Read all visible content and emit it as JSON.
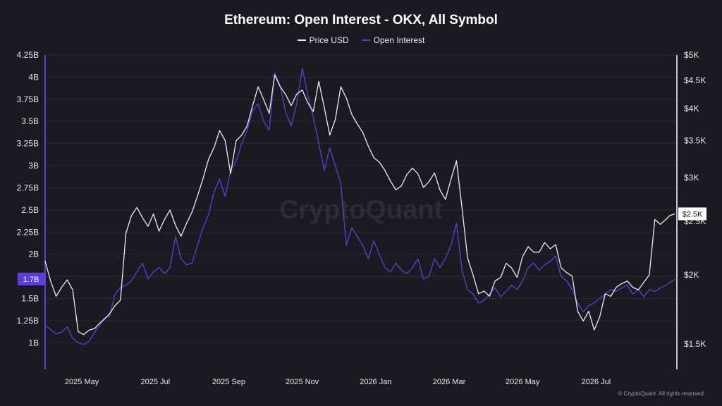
{
  "title": "Ethereum: Open Interest - OKX, All Symbol",
  "legend": {
    "price_label": "Price USD",
    "oi_label": "Open Interest"
  },
  "footer": "© CryptoQuant. All rights reserved",
  "watermark": "CryptoQuant",
  "colors": {
    "background": "#1b1a20",
    "price": "#ececf0",
    "open_interest": "#5a3fdc",
    "grid": "#2b2a32",
    "axis_text": "#e6e6ea",
    "left_axis_line": "#5a3fdc",
    "oi_tag_bg": "#5a3fdc",
    "price_tag_bg": "#ffffff"
  },
  "chart_data": {
    "type": "line",
    "title": "Ethereum: Open Interest - OKX, All Symbol",
    "x_tick_labels": [
      "2025 May",
      "2025 Jul",
      "2025 Sep",
      "2025 Nov",
      "2026 Jan",
      "2026 Mar",
      "2026 May",
      "2026 Jul"
    ],
    "x_ticks_month_index": [
      1,
      3,
      5,
      7,
      9,
      11,
      13,
      15
    ],
    "x_range_month_index": [
      0,
      17.2
    ],
    "left_axis": {
      "ylim": [
        0.7,
        4.25
      ],
      "ticks": [
        1,
        1.25,
        1.5,
        1.75,
        2,
        2.25,
        2.5,
        2.75,
        3,
        3.25,
        3.5,
        3.75,
        4,
        4.25
      ],
      "tick_labels": [
        "1B",
        "1.25B",
        "1.5B",
        "1.75B",
        "2B",
        "2.25B",
        "2.5B",
        "2.75B",
        "3B",
        "3.25B",
        "3.5B",
        "3.75B",
        "4B",
        "4.25B"
      ],
      "current_value_label": "1.7B"
    },
    "right_axis": {
      "scale": "log",
      "ylim": [
        1350,
        5000
      ],
      "ticks": [
        1500,
        2000,
        2500,
        3000,
        3500,
        4000,
        4500,
        5000
      ],
      "tick_labels": [
        "$1.5K",
        "$2K",
        "$2.5K",
        "$3K",
        "$3.5K",
        "$4K",
        "$4.5K",
        "$5K"
      ],
      "current_value_label": "$2.5K"
    },
    "series": [
      {
        "name": "Price USD",
        "axis": "right",
        "color": "#ececf0",
        "x": [
          0,
          0.15,
          0.3,
          0.45,
          0.6,
          0.75,
          0.9,
          1.05,
          1.2,
          1.35,
          1.5,
          1.6,
          1.75,
          1.9,
          2.05,
          2.2,
          2.35,
          2.5,
          2.65,
          2.8,
          2.95,
          3.1,
          3.25,
          3.4,
          3.55,
          3.7,
          3.85,
          4.0,
          4.15,
          4.3,
          4.45,
          4.6,
          4.75,
          4.9,
          5.05,
          5.2,
          5.35,
          5.5,
          5.65,
          5.8,
          5.95,
          6.1,
          6.25,
          6.4,
          6.55,
          6.7,
          6.85,
          7.0,
          7.15,
          7.3,
          7.45,
          7.6,
          7.75,
          7.9,
          8.05,
          8.2,
          8.35,
          8.5,
          8.65,
          8.8,
          8.95,
          9.1,
          9.25,
          9.4,
          9.55,
          9.7,
          9.85,
          10.0,
          10.15,
          10.3,
          10.45,
          10.6,
          10.75,
          10.9,
          11.05,
          11.2,
          11.35,
          11.5,
          11.65,
          11.8,
          11.95,
          12.1,
          12.25,
          12.4,
          12.55,
          12.7,
          12.85,
          13.0,
          13.15,
          13.3,
          13.45,
          13.6,
          13.75,
          13.9,
          14.05,
          14.2,
          14.35,
          14.5,
          14.65,
          14.8,
          14.95,
          15.1,
          15.25,
          15.4,
          15.55,
          15.7,
          15.85,
          16.0,
          16.15,
          16.3,
          16.45,
          16.6,
          16.75,
          16.9,
          17.0,
          17.15
        ],
        "values": [
          2120,
          1950,
          1830,
          1900,
          1960,
          1880,
          1580,
          1560,
          1590,
          1600,
          1640,
          1660,
          1700,
          1760,
          1800,
          2380,
          2560,
          2650,
          2540,
          2450,
          2580,
          2400,
          2520,
          2620,
          2460,
          2350,
          2480,
          2600,
          2780,
          2990,
          3240,
          3400,
          3650,
          3500,
          3050,
          3500,
          3580,
          3720,
          4050,
          4380,
          4150,
          3920,
          4600,
          4380,
          4240,
          4050,
          4250,
          4320,
          4100,
          3950,
          4480,
          4020,
          3580,
          3820,
          4380,
          4180,
          3900,
          3750,
          3620,
          3420,
          3260,
          3200,
          3090,
          2960,
          2850,
          2900,
          3040,
          3120,
          3050,
          2880,
          2950,
          3060,
          2850,
          2740,
          2980,
          3220,
          2640,
          2150,
          2000,
          1850,
          1870,
          1830,
          1950,
          1980,
          2100,
          2060,
          1980,
          2160,
          2250,
          2200,
          2200,
          2290,
          2230,
          2270,
          2060,
          2020,
          1990,
          1720,
          1650,
          1720,
          1590,
          1680,
          1850,
          1830,
          1900,
          1930,
          1950,
          1900,
          1880,
          1940,
          2000,
          2520,
          2470,
          2520,
          2560,
          2580
        ]
      },
      {
        "name": "Open Interest",
        "axis": "left",
        "color": "#5a3fdc",
        "x": [
          0,
          0.15,
          0.3,
          0.45,
          0.6,
          0.75,
          0.9,
          1.05,
          1.2,
          1.35,
          1.5,
          1.6,
          1.75,
          1.9,
          2.05,
          2.2,
          2.35,
          2.5,
          2.65,
          2.8,
          2.95,
          3.1,
          3.25,
          3.4,
          3.55,
          3.7,
          3.85,
          4.0,
          4.15,
          4.3,
          4.45,
          4.6,
          4.75,
          4.9,
          5.05,
          5.2,
          5.35,
          5.5,
          5.65,
          5.8,
          5.95,
          6.1,
          6.25,
          6.4,
          6.55,
          6.7,
          6.85,
          7.0,
          7.15,
          7.3,
          7.45,
          7.6,
          7.75,
          7.9,
          8.05,
          8.2,
          8.35,
          8.5,
          8.65,
          8.8,
          8.95,
          9.1,
          9.25,
          9.4,
          9.55,
          9.7,
          9.85,
          10.0,
          10.15,
          10.3,
          10.45,
          10.6,
          10.75,
          10.9,
          11.05,
          11.2,
          11.35,
          11.5,
          11.65,
          11.8,
          11.95,
          12.1,
          12.25,
          12.4,
          12.55,
          12.7,
          12.85,
          13.0,
          13.15,
          13.3,
          13.45,
          13.6,
          13.75,
          13.9,
          14.05,
          14.2,
          14.35,
          14.5,
          14.65,
          14.8,
          14.95,
          15.1,
          15.25,
          15.4,
          15.55,
          15.7,
          15.85,
          16.0,
          16.15,
          16.3,
          16.45,
          16.6,
          16.75,
          16.9,
          17.0,
          17.15
        ],
        "values": [
          1.2,
          1.15,
          1.1,
          1.12,
          1.18,
          1.05,
          1.0,
          0.98,
          1.02,
          1.12,
          1.2,
          1.28,
          1.3,
          1.55,
          1.62,
          1.65,
          1.7,
          1.8,
          1.9,
          1.72,
          1.8,
          1.85,
          1.78,
          1.85,
          2.2,
          1.95,
          1.88,
          1.9,
          2.1,
          2.3,
          2.45,
          2.7,
          2.85,
          2.65,
          2.95,
          3.05,
          3.25,
          3.4,
          3.62,
          3.7,
          3.5,
          3.4,
          4.05,
          3.9,
          3.6,
          3.45,
          3.7,
          4.1,
          3.8,
          3.55,
          3.25,
          2.95,
          3.2,
          3.0,
          2.8,
          2.1,
          2.3,
          2.2,
          2.1,
          1.95,
          2.15,
          2.0,
          1.85,
          1.8,
          1.9,
          1.82,
          1.78,
          1.85,
          1.95,
          1.72,
          1.75,
          1.95,
          1.85,
          1.95,
          2.1,
          2.35,
          1.82,
          1.6,
          1.55,
          1.45,
          1.48,
          1.55,
          1.62,
          1.52,
          1.58,
          1.65,
          1.6,
          1.7,
          1.85,
          1.9,
          1.82,
          1.88,
          1.92,
          1.98,
          1.75,
          1.7,
          1.6,
          1.45,
          1.35,
          1.42,
          1.45,
          1.5,
          1.55,
          1.6,
          1.58,
          1.62,
          1.65,
          1.55,
          1.6,
          1.52,
          1.6,
          1.58,
          1.62,
          1.65,
          1.68,
          1.72
        ]
      }
    ],
    "grid": true,
    "legend_position": "top-center"
  }
}
